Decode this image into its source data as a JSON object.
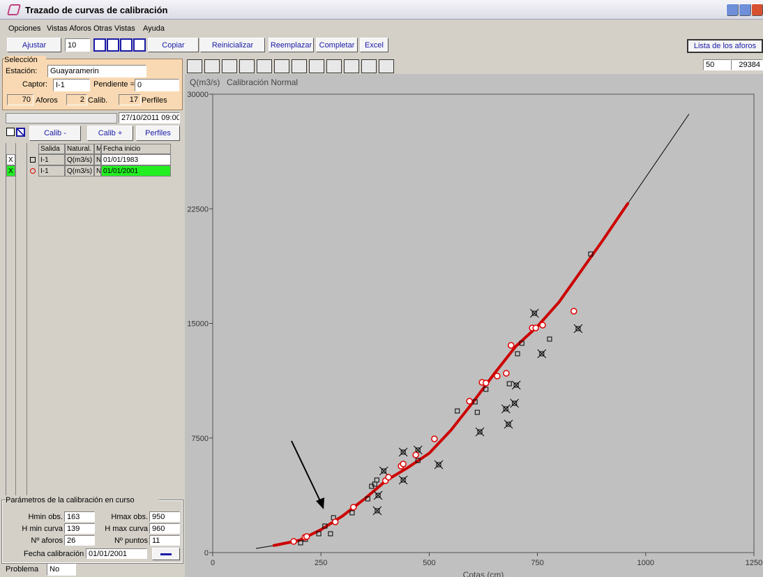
{
  "window": {
    "title": "Trazado de curvas de calibración"
  },
  "menu": [
    "Opciones",
    "Vistas Aforos",
    "Otras Vistas",
    "Ayuda"
  ],
  "toolbar": {
    "adjust": "Ajustar",
    "step": "10",
    "copy": "Copiar",
    "reset": "Reinicializar",
    "replace": "Reemplazar",
    "complete": "Completar",
    "excel": "Excel",
    "gauging_list": "Lista de los aforos"
  },
  "selection": {
    "group": "Selección",
    "station_label": "Estación:",
    "station": "Guayaramerin",
    "sensor_label": "Captor:",
    "sensor": "I-1",
    "slope_label": "Pendiente =",
    "slope": "0",
    "gaugings_count": "70",
    "gaugings_label": "Aforos",
    "calib_count": "2",
    "calib_label": "Calib.",
    "profiles_count": "17",
    "profiles_label": "Perfiles"
  },
  "date": "27/10/2011 09:00",
  "buttons": {
    "calib_minus": "Calib -",
    "calib_plus": "Calib +",
    "profiles": "Perfiles"
  },
  "table": {
    "headers": [
      "Salida",
      "Natural.",
      "M.",
      "Fecha inicio"
    ],
    "rows": [
      {
        "check": "X",
        "cells": [
          "I-1",
          "Q(m3/s)",
          "N",
          "01/01/1983"
        ]
      },
      {
        "check": "X",
        "cells": [
          "I-1",
          "Q(m3/s)",
          "N",
          "01/01/2001"
        ]
      }
    ]
  },
  "params": {
    "title": "Parámetros de la calibración en curso",
    "hmin_obs_label": "Hmin obs.",
    "hmin_obs": "163",
    "hmax_obs_label": "Hmax obs.",
    "hmax_obs": "950",
    "hmin_curve_label": "H min curva",
    "hmin_curve": "139",
    "hmax_curve_label": "H max curva",
    "hmax_curve": "960",
    "n_gaugings_label": "Nº aforos",
    "n_gaugings": "26",
    "n_points_label": "Nº puntos",
    "n_points": "11",
    "calib_date_label": "Fecha calibración",
    "calib_date": "01/01/2001",
    "problem_label": "Problema",
    "problem": "No"
  },
  "status": {
    "field1": "50",
    "field2": "29384"
  },
  "chart_data": {
    "type": "scatter",
    "title": "Calibración Normal",
    "ylabel": "Q(m3/s)",
    "xlabel": "Cotas (cm)",
    "xlim": [
      0,
      1250
    ],
    "ylim": [
      0,
      30000
    ],
    "xticks": [
      0,
      250,
      500,
      750,
      1000,
      1250
    ],
    "yticks": [
      0,
      7500,
      15000,
      22500,
      30000
    ],
    "series": [
      {
        "marker": "line",
        "color": "#000000",
        "width": 1,
        "x": [
          100,
          139
        ],
        "values": [
          270,
          450
        ]
      },
      {
        "marker": "line",
        "color": "#000000",
        "width": 1,
        "x": [
          960,
          1100
        ],
        "values": [
          22900,
          28700
        ]
      },
      {
        "marker": "line",
        "color": "#cc0000",
        "width": 4,
        "x": [
          139,
          200,
          250,
          300,
          350,
          400,
          450,
          500,
          550,
          600,
          650,
          700,
          750,
          800,
          850,
          900,
          960
        ],
        "values": [
          450,
          800,
          1500,
          2400,
          3500,
          4700,
          5550,
          6500,
          8000,
          9800,
          11700,
          13500,
          14800,
          16400,
          18400,
          20400,
          22900
        ]
      },
      {
        "marker": "square",
        "color": "#000000",
        "x": [
          203,
          214,
          245,
          272,
          259,
          279,
          322,
          358,
          367,
          374,
          379,
          474,
          565,
          606,
          611,
          631,
          685,
          704,
          714,
          778,
          873
        ],
        "values": [
          639,
          868,
          1233,
          1233,
          1735,
          2283,
          2603,
          3516,
          4338,
          4475,
          4749,
          6027,
          9269,
          9863,
          9178,
          10685,
          11050,
          13014,
          13699,
          13973,
          19543
        ]
      },
      {
        "marker": "x",
        "color": "#000000",
        "x": [
          395,
          382,
          380,
          440,
          440,
          474,
          522,
          617,
          743,
          844,
          760,
          701,
          697,
          677,
          683
        ],
        "values": [
          5342,
          3744,
          2740,
          6575,
          4749,
          6712,
          5753,
          7900,
          15662,
          14658,
          13014,
          10959,
          9772,
          9406,
          8402
        ]
      },
      {
        "marker": "circle",
        "color": "#e00000",
        "x": [
          187,
          213,
          217,
          283,
          325,
          399,
          406,
          435,
          440,
          469,
          512,
          593,
          622,
          631,
          657,
          678,
          689,
          738,
          746,
          762,
          834
        ],
        "values": [
          731,
          1005,
          1050,
          2009,
          2968,
          4703,
          4932,
          5662,
          5799,
          6393,
          7443,
          9909,
          11142,
          11096,
          11553,
          11735,
          13562,
          14703,
          14703,
          14886,
          15799
        ]
      }
    ]
  }
}
